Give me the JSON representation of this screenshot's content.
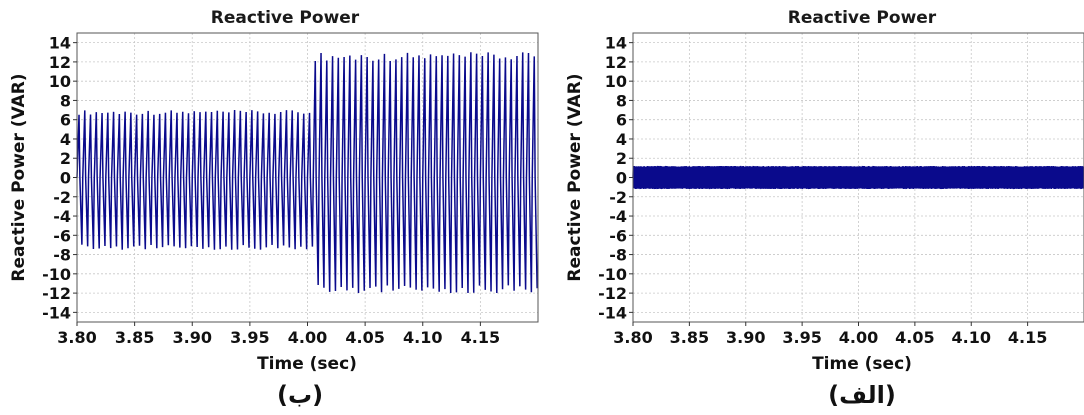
{
  "chart_data": [
    {
      "type": "line",
      "panel": "left",
      "caption": "(ب)",
      "title": "Reactive Power",
      "xlabel": "Time (sec)",
      "ylabel": "Reactive Power (VAR)",
      "xlim": [
        3.8,
        4.2
      ],
      "ylim": [
        -15,
        15
      ],
      "xticks": [
        "3.80",
        "3.85",
        "3.90",
        "3.95",
        "4.00",
        "4.05",
        "4.10",
        "4.15"
      ],
      "yticks": [
        "14",
        "12",
        "10",
        "8",
        "6",
        "4",
        "2",
        "0",
        "-2",
        "-4",
        "-6",
        "-8",
        "-10",
        "-12",
        "-14"
      ],
      "grid": true,
      "series": [
        {
          "color": "#0a0a8c",
          "description_values": {
            "segments": [
              {
                "t_start": 3.8,
                "t_end": 4.005,
                "amplitude_peak": 7.0,
                "amplitude_trough": -7.5
              },
              {
                "t_start": 4.005,
                "t_end": 4.2,
                "amplitude_peak": 13.0,
                "amplitude_trough": -12.0
              }
            ],
            "oscillation_period": 0.005
          }
        }
      ]
    },
    {
      "type": "line",
      "panel": "right",
      "caption": "(الف)",
      "title": "Reactive Power",
      "xlabel": "Time (sec)",
      "ylabel": "Reactive Power (VAR)",
      "xlim": [
        3.8,
        4.2
      ],
      "ylim": [
        -15,
        15
      ],
      "xticks": [
        "3.80",
        "3.85",
        "3.90",
        "3.95",
        "4.00",
        "4.05",
        "4.10",
        "4.15"
      ],
      "yticks": [
        "14",
        "12",
        "10",
        "8",
        "6",
        "4",
        "2",
        "0",
        "-2",
        "-4",
        "-6",
        "-8",
        "-10",
        "-12",
        "-14"
      ],
      "grid": true,
      "series": [
        {
          "color": "#0a0a8c",
          "description_values": {
            "segments": [
              {
                "t_start": 3.8,
                "t_end": 4.2,
                "amplitude_peak": 1.2,
                "amplitude_trough": -1.2
              }
            ],
            "oscillation_period": 0.0008
          }
        }
      ]
    }
  ]
}
